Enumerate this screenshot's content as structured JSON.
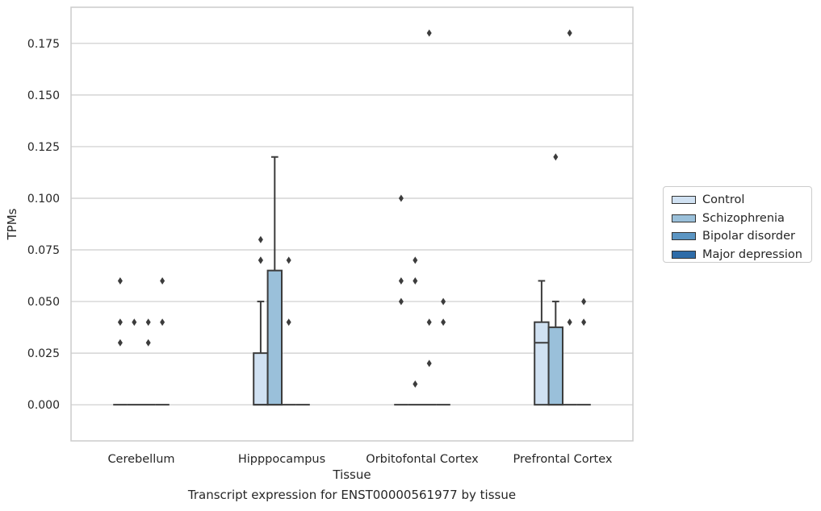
{
  "caption": "Transcript expression for ENST00000561977 by tissue",
  "chart_data": {
    "type": "box",
    "title": "",
    "xlabel": "Tissue",
    "ylabel": "TPMs",
    "ylim": [
      -0.0175,
      0.1925
    ],
    "yticks": [
      "0.000",
      "0.025",
      "0.050",
      "0.075",
      "0.100",
      "0.125",
      "0.150",
      "0.175"
    ],
    "grid": "horizontal",
    "legend_position": "right",
    "categories": [
      "Cerebellum",
      "Hipppocampus",
      "Orbitofontal Cortex",
      "Prefrontal Cortex"
    ],
    "series": [
      {
        "name": "Control",
        "color": "#d0e1f2",
        "boxes": [
          {
            "q1": 0,
            "median": 0,
            "q3": 0,
            "whislo": 0,
            "whishi": 0,
            "fliers": [
              0.03,
              0.04,
              0.06
            ]
          },
          {
            "q1": 0,
            "median": 0,
            "q3": 0.025,
            "whislo": 0,
            "whishi": 0.05,
            "fliers": [
              0.07,
              0.07,
              0.08
            ]
          },
          {
            "q1": 0,
            "median": 0,
            "q3": 0,
            "whislo": 0,
            "whishi": 0,
            "fliers": [
              0.05,
              0.06,
              0.1
            ]
          },
          {
            "q1": 0,
            "median": 0.03,
            "q3": 0.04,
            "whislo": 0,
            "whishi": 0.06,
            "fliers": []
          }
        ]
      },
      {
        "name": "Schizophrenia",
        "color": "#9ac0da",
        "boxes": [
          {
            "q1": 0,
            "median": 0,
            "q3": 0,
            "whislo": 0,
            "whishi": 0,
            "fliers": [
              0.04
            ]
          },
          {
            "q1": 0,
            "median": 0,
            "q3": 0.065,
            "whislo": 0,
            "whishi": 0.12,
            "fliers": []
          },
          {
            "q1": 0,
            "median": 0,
            "q3": 0,
            "whislo": 0,
            "whishi": 0,
            "fliers": [
              0.01,
              0.06,
              0.07
            ]
          },
          {
            "q1": 0,
            "median": 0,
            "q3": 0.0375,
            "whislo": 0,
            "whishi": 0.05,
            "fliers": [
              0.12
            ]
          }
        ]
      },
      {
        "name": "Bipolar disorder",
        "color": "#5b95c3",
        "boxes": [
          {
            "q1": 0,
            "median": 0,
            "q3": 0,
            "whislo": 0,
            "whishi": 0,
            "fliers": [
              0.03,
              0.04
            ]
          },
          {
            "q1": 0,
            "median": 0,
            "q3": 0,
            "whislo": 0,
            "whishi": 0,
            "fliers": [
              0.04,
              0.07
            ]
          },
          {
            "q1": 0,
            "median": 0,
            "q3": 0,
            "whislo": 0,
            "whishi": 0,
            "fliers": [
              0.02,
              0.04,
              0.18
            ]
          },
          {
            "q1": 0,
            "median": 0,
            "q3": 0,
            "whislo": 0,
            "whishi": 0,
            "fliers": [
              0.04,
              0.18
            ]
          }
        ]
      },
      {
        "name": "Major depression",
        "color": "#2e6ca8",
        "boxes": [
          {
            "q1": 0,
            "median": 0,
            "q3": 0,
            "whislo": 0,
            "whishi": 0,
            "fliers": [
              0.04,
              0.06
            ]
          },
          {
            "q1": 0,
            "median": 0,
            "q3": 0,
            "whislo": 0,
            "whishi": 0,
            "fliers": []
          },
          {
            "q1": 0,
            "median": 0,
            "q3": 0,
            "whislo": 0,
            "whishi": 0,
            "fliers": [
              0.04,
              0.05
            ]
          },
          {
            "q1": 0,
            "median": 0,
            "q3": 0,
            "whislo": 0,
            "whishi": 0,
            "fliers": [
              0.04,
              0.05
            ]
          }
        ]
      }
    ]
  }
}
